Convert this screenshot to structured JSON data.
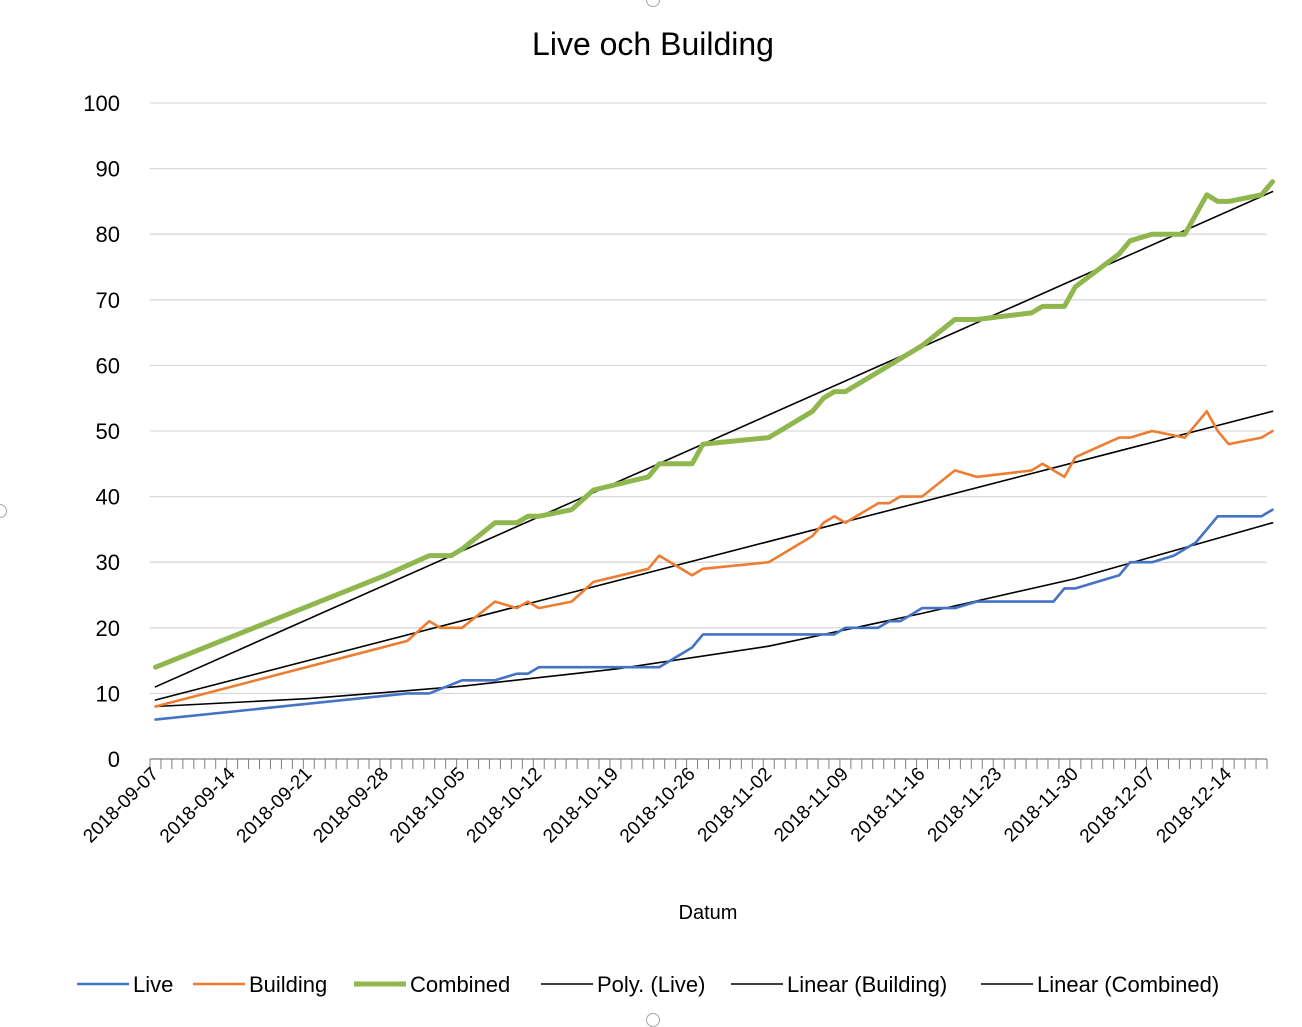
{
  "chart_data": {
    "type": "line",
    "title": "Live och Building",
    "xlabel": "Datum",
    "ylabel": "",
    "ylim": [
      0,
      100
    ],
    "xlim": [
      "2018-09-07",
      "2018-12-18"
    ],
    "yticks": [
      0,
      10,
      20,
      30,
      40,
      50,
      60,
      70,
      80,
      90,
      100
    ],
    "xtick_labels": [
      "2018-09-07",
      "2018-09-14",
      "2018-09-21",
      "2018-09-28",
      "2018-10-05",
      "2018-10-12",
      "2018-10-19",
      "2018-10-26",
      "2018-11-02",
      "2018-11-09",
      "2018-11-16",
      "2018-11-23",
      "2018-11-30",
      "2018-12-07",
      "2018-12-14"
    ],
    "grid": "horizontal",
    "legend_position": "bottom",
    "series": [
      {
        "name": "Live",
        "color": "#4472C4",
        "points": [
          [
            "2018-09-07",
            6
          ],
          [
            "2018-09-30",
            10
          ],
          [
            "2018-10-02",
            10
          ],
          [
            "2018-10-05",
            12
          ],
          [
            "2018-10-08",
            12
          ],
          [
            "2018-10-10",
            13
          ],
          [
            "2018-10-11",
            13
          ],
          [
            "2018-10-12",
            14
          ],
          [
            "2018-10-23",
            14
          ],
          [
            "2018-10-26",
            17
          ],
          [
            "2018-10-27",
            19
          ],
          [
            "2018-11-07",
            19
          ],
          [
            "2018-11-08",
            19
          ],
          [
            "2018-11-09",
            20
          ],
          [
            "2018-11-12",
            20
          ],
          [
            "2018-11-13",
            21
          ],
          [
            "2018-11-14",
            21
          ],
          [
            "2018-11-15",
            22
          ],
          [
            "2018-11-16",
            23
          ],
          [
            "2018-11-19",
            23
          ],
          [
            "2018-11-21",
            24
          ],
          [
            "2018-11-28",
            24
          ],
          [
            "2018-11-29",
            26
          ],
          [
            "2018-11-30",
            26
          ],
          [
            "2018-12-04",
            28
          ],
          [
            "2018-12-05",
            30
          ],
          [
            "2018-12-07",
            30
          ],
          [
            "2018-12-09",
            31
          ],
          [
            "2018-12-11",
            33
          ],
          [
            "2018-12-12",
            35
          ],
          [
            "2018-12-13",
            37
          ],
          [
            "2018-12-17",
            37
          ],
          [
            "2018-12-18",
            38
          ]
        ]
      },
      {
        "name": "Building",
        "color": "#ED7D31",
        "points": [
          [
            "2018-09-07",
            8
          ],
          [
            "2018-09-30",
            18
          ],
          [
            "2018-10-02",
            21
          ],
          [
            "2018-10-03",
            20
          ],
          [
            "2018-10-05",
            20
          ],
          [
            "2018-10-08",
            24
          ],
          [
            "2018-10-10",
            23
          ],
          [
            "2018-10-11",
            24
          ],
          [
            "2018-10-12",
            23
          ],
          [
            "2018-10-15",
            24
          ],
          [
            "2018-10-17",
            27
          ],
          [
            "2018-10-22",
            29
          ],
          [
            "2018-10-23",
            31
          ],
          [
            "2018-10-26",
            28
          ],
          [
            "2018-10-27",
            29
          ],
          [
            "2018-11-02",
            30
          ],
          [
            "2018-11-06",
            34
          ],
          [
            "2018-11-07",
            36
          ],
          [
            "2018-11-08",
            37
          ],
          [
            "2018-11-09",
            36
          ],
          [
            "2018-11-12",
            39
          ],
          [
            "2018-11-13",
            39
          ],
          [
            "2018-11-14",
            40
          ],
          [
            "2018-11-16",
            40
          ],
          [
            "2018-11-19",
            44
          ],
          [
            "2018-11-21",
            43
          ],
          [
            "2018-11-26",
            44
          ],
          [
            "2018-11-27",
            45
          ],
          [
            "2018-11-29",
            43
          ],
          [
            "2018-11-30",
            46
          ],
          [
            "2018-12-04",
            49
          ],
          [
            "2018-12-05",
            49
          ],
          [
            "2018-12-07",
            50
          ],
          [
            "2018-12-10",
            49
          ],
          [
            "2018-12-12",
            53
          ],
          [
            "2018-12-13",
            50
          ],
          [
            "2018-12-14",
            48
          ],
          [
            "2018-12-17",
            49
          ],
          [
            "2018-12-18",
            50
          ]
        ]
      },
      {
        "name": "Combined",
        "color": "#8FB74E",
        "points": [
          [
            "2018-09-07",
            14
          ],
          [
            "2018-09-28",
            28
          ],
          [
            "2018-10-02",
            31
          ],
          [
            "2018-10-04",
            31
          ],
          [
            "2018-10-05",
            32
          ],
          [
            "2018-10-08",
            36
          ],
          [
            "2018-10-10",
            36
          ],
          [
            "2018-10-11",
            37
          ],
          [
            "2018-10-12",
            37
          ],
          [
            "2018-10-15",
            38
          ],
          [
            "2018-10-17",
            41
          ],
          [
            "2018-10-22",
            43
          ],
          [
            "2018-10-23",
            45
          ],
          [
            "2018-10-26",
            45
          ],
          [
            "2018-10-27",
            48
          ],
          [
            "2018-11-02",
            49
          ],
          [
            "2018-11-06",
            53
          ],
          [
            "2018-11-07",
            55
          ],
          [
            "2018-11-08",
            56
          ],
          [
            "2018-11-09",
            56
          ],
          [
            "2018-11-12",
            59
          ],
          [
            "2018-11-16",
            63
          ],
          [
            "2018-11-19",
            67
          ],
          [
            "2018-11-21",
            67
          ],
          [
            "2018-11-26",
            68
          ],
          [
            "2018-11-27",
            69
          ],
          [
            "2018-11-29",
            69
          ],
          [
            "2018-11-30",
            72
          ],
          [
            "2018-12-04",
            77
          ],
          [
            "2018-12-05",
            79
          ],
          [
            "2018-12-07",
            80
          ],
          [
            "2018-12-10",
            80
          ],
          [
            "2018-12-12",
            86
          ],
          [
            "2018-12-13",
            85
          ],
          [
            "2018-12-14",
            85
          ],
          [
            "2018-12-17",
            86
          ],
          [
            "2018-12-18",
            88
          ]
        ]
      },
      {
        "name": "Poly. (Live)",
        "color": "#000000",
        "trend": true,
        "points": [
          [
            "2018-09-07",
            8
          ],
          [
            "2018-09-21",
            9.2
          ],
          [
            "2018-10-05",
            11.1
          ],
          [
            "2018-10-19",
            13.7
          ],
          [
            "2018-11-02",
            17.2
          ],
          [
            "2018-11-16",
            22.2
          ],
          [
            "2018-11-30",
            27.5
          ],
          [
            "2018-12-18",
            36
          ]
        ]
      },
      {
        "name": "Linear (Building)",
        "color": "#000000",
        "trend": true,
        "points": [
          [
            "2018-09-07",
            9
          ],
          [
            "2018-12-18",
            53
          ]
        ]
      },
      {
        "name": "Linear (Combined)",
        "color": "#000000",
        "trend": true,
        "points": [
          [
            "2018-09-07",
            11
          ],
          [
            "2018-12-18",
            86.5
          ]
        ]
      }
    ]
  }
}
